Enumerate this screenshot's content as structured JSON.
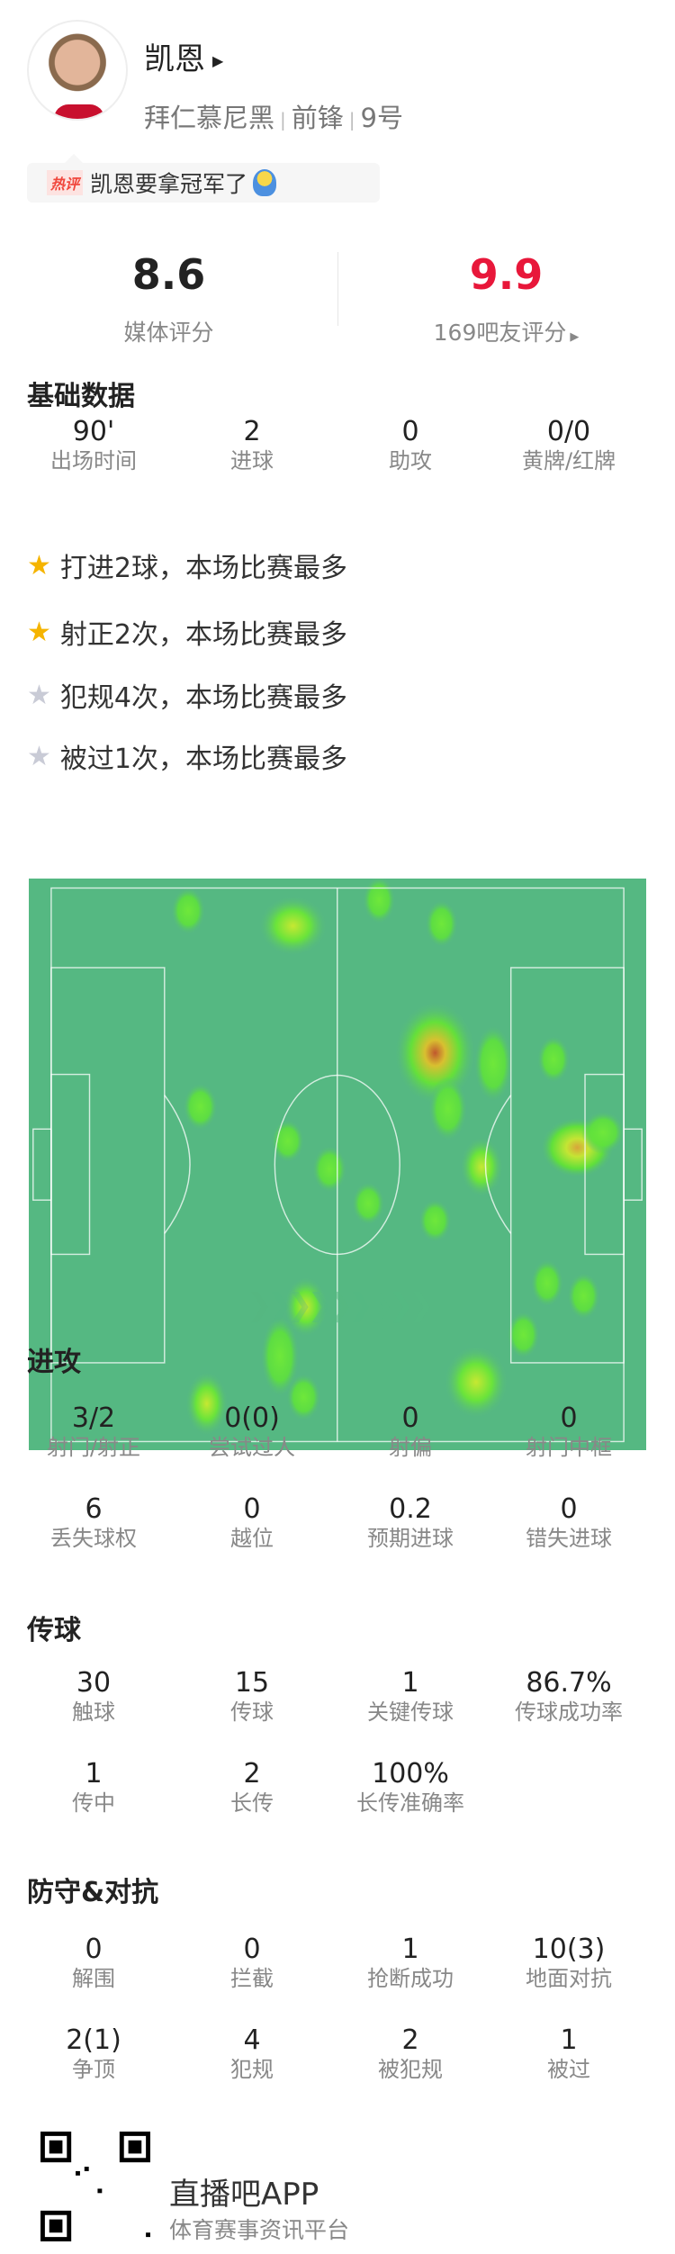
{
  "player": {
    "name": "凯恩",
    "team": "拜仁慕尼黑",
    "position": "前锋",
    "number": "9号"
  },
  "hot_comment": {
    "tag": "热评",
    "text": "凯恩要拿冠军了"
  },
  "ratings": {
    "media_value": "8.6",
    "media_label": "媒体评分",
    "fan_value": "9.9",
    "fan_label": "169吧友评分",
    "fan_color": "#e8173a"
  },
  "basic": {
    "title": "基础数据",
    "stats": [
      {
        "v": "90'",
        "l": "出场时间"
      },
      {
        "v": "2",
        "l": "进球"
      },
      {
        "v": "0",
        "l": "助攻"
      },
      {
        "v": "0/0",
        "l": "黄牌/红牌"
      }
    ]
  },
  "highlights": [
    {
      "text": "打进2球，本场比赛最多",
      "icon": "star-gold"
    },
    {
      "text": "射正2次，本场比赛最多",
      "icon": "star-gold"
    },
    {
      "text": "犯规4次，本场比赛最多",
      "icon": "star-gray"
    },
    {
      "text": "被过1次，本场比赛最多",
      "icon": "star-gray"
    }
  ],
  "attack": {
    "title": "进攻",
    "stats": [
      {
        "v": "3/2",
        "l": "射门/射正"
      },
      {
        "v": "0(0)",
        "l": "尝试过人"
      },
      {
        "v": "0",
        "l": "射偏"
      },
      {
        "v": "0",
        "l": "射门中框"
      },
      {
        "v": "6",
        "l": "丢失球权"
      },
      {
        "v": "0",
        "l": "越位"
      },
      {
        "v": "0.2",
        "l": "预期进球"
      },
      {
        "v": "0",
        "l": "错失进球"
      }
    ]
  },
  "passing": {
    "title": "传球",
    "stats": [
      {
        "v": "30",
        "l": "触球"
      },
      {
        "v": "15",
        "l": "传球"
      },
      {
        "v": "1",
        "l": "关键传球"
      },
      {
        "v": "86.7%",
        "l": "传球成功率"
      },
      {
        "v": "1",
        "l": "传中"
      },
      {
        "v": "2",
        "l": "长传"
      },
      {
        "v": "100%",
        "l": "长传准确率"
      }
    ]
  },
  "defense": {
    "title": "防守&对抗",
    "stats": [
      {
        "v": "0",
        "l": "解围"
      },
      {
        "v": "0",
        "l": "拦截"
      },
      {
        "v": "1",
        "l": "抢断成功"
      },
      {
        "v": "10(3)",
        "l": "地面对抗"
      },
      {
        "v": "2(1)",
        "l": "争顶"
      },
      {
        "v": "4",
        "l": "犯规"
      },
      {
        "v": "2",
        "l": "被犯规"
      },
      {
        "v": "1",
        "l": "被过"
      }
    ]
  },
  "footer": {
    "app_name": "直播吧APP",
    "slogan": "体育赛事资讯平台"
  },
  "colors": {
    "pitch": "#55b882",
    "star_gold": "#f5b400",
    "star_gray": "#c9cbd6"
  }
}
